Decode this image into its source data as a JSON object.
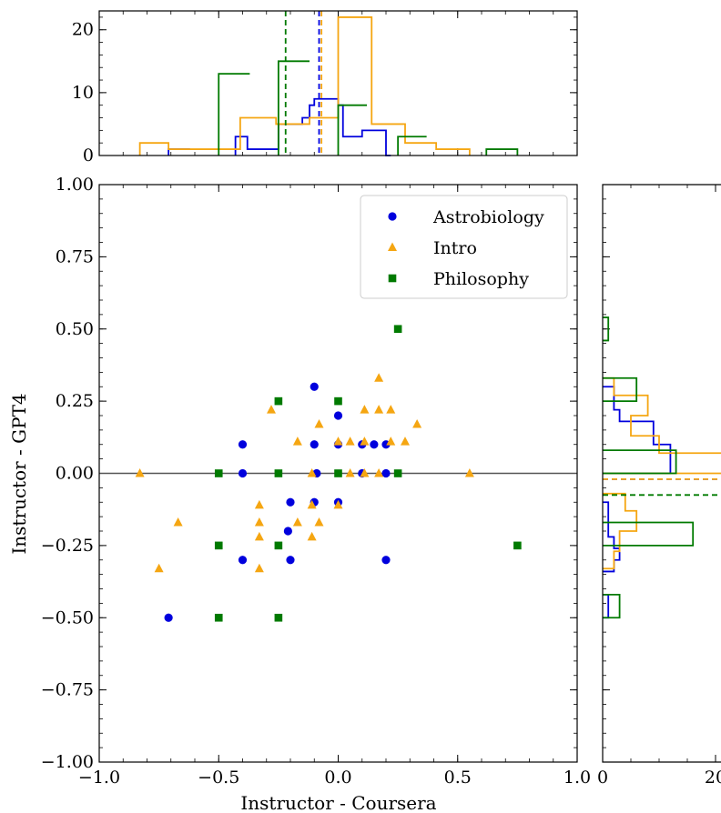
{
  "chart_data": [
    {
      "type": "scatter",
      "panel": "main",
      "xlabel": "Instructor - Coursera",
      "ylabel": "Instructor - GPT4",
      "xlim": [
        -1.0,
        1.0
      ],
      "ylim": [
        -1.0,
        1.0
      ],
      "xticks": [
        "−1.0",
        "−0.5",
        "0.0",
        "0.5",
        "1.0"
      ],
      "xtick_values": [
        -1.0,
        -0.5,
        0.0,
        0.5,
        1.0
      ],
      "yticks": [
        "1.00",
        "0.75",
        "0.50",
        "0.25",
        "0.00",
        "−0.25",
        "−0.50",
        "−0.75",
        "−1.00"
      ],
      "ytick_values": [
        1.0,
        0.75,
        0.5,
        0.25,
        0.0,
        -0.25,
        -0.5,
        -0.75,
        -1.0
      ],
      "hline": 0,
      "legend_position": "top-right",
      "series": [
        {
          "name": "Astrobiology",
          "marker": "circle",
          "color": "#0000dd",
          "points": [
            [
              -0.71,
              -0.5
            ],
            [
              -0.4,
              0.1
            ],
            [
              -0.4,
              0.0
            ],
            [
              -0.4,
              -0.3
            ],
            [
              -0.2,
              -0.1
            ],
            [
              -0.21,
              -0.2
            ],
            [
              -0.2,
              -0.3
            ],
            [
              -0.1,
              0.3
            ],
            [
              -0.1,
              0.1
            ],
            [
              -0.09,
              0.0
            ],
            [
              -0.1,
              -0.1
            ],
            [
              0.0,
              0.2
            ],
            [
              0.0,
              0.1
            ],
            [
              0.0,
              -0.1
            ],
            [
              0.1,
              0.1
            ],
            [
              0.1,
              0.0
            ],
            [
              0.15,
              0.1
            ],
            [
              0.2,
              0.1
            ],
            [
              0.2,
              0.0
            ],
            [
              0.2,
              -0.3
            ]
          ]
        },
        {
          "name": "Intro",
          "marker": "triangle",
          "color": "#f5a612",
          "points": [
            [
              -0.83,
              0.0
            ],
            [
              -0.75,
              -0.33
            ],
            [
              -0.67,
              -0.17
            ],
            [
              -0.28,
              0.22
            ],
            [
              -0.33,
              -0.11
            ],
            [
              -0.33,
              -0.17
            ],
            [
              -0.33,
              -0.22
            ],
            [
              -0.33,
              -0.33
            ],
            [
              -0.17,
              0.11
            ],
            [
              -0.17,
              -0.17
            ],
            [
              -0.11,
              0.0
            ],
            [
              -0.11,
              -0.11
            ],
            [
              -0.11,
              -0.22
            ],
            [
              -0.08,
              0.17
            ],
            [
              -0.08,
              -0.17
            ],
            [
              0.0,
              0.11
            ],
            [
              0.0,
              -0.11
            ],
            [
              0.05,
              0.11
            ],
            [
              0.05,
              0.0
            ],
            [
              0.11,
              0.22
            ],
            [
              0.11,
              0.11
            ],
            [
              0.11,
              0.0
            ],
            [
              0.17,
              0.33
            ],
            [
              0.17,
              0.22
            ],
            [
              0.17,
              0.0
            ],
            [
              0.22,
              0.22
            ],
            [
              0.22,
              0.11
            ],
            [
              0.28,
              0.11
            ],
            [
              0.33,
              0.17
            ],
            [
              0.55,
              0.0
            ]
          ]
        },
        {
          "name": "Philosophy",
          "marker": "square",
          "color": "#007a00",
          "points": [
            [
              -0.5,
              0.0
            ],
            [
              -0.5,
              -0.25
            ],
            [
              -0.5,
              -0.5
            ],
            [
              -0.25,
              0.25
            ],
            [
              -0.25,
              0.0
            ],
            [
              -0.25,
              -0.25
            ],
            [
              -0.25,
              -0.5
            ],
            [
              0.0,
              0.25
            ],
            [
              0.0,
              0.0
            ],
            [
              0.25,
              0.5
            ],
            [
              0.25,
              0.0
            ],
            [
              0.75,
              -0.25
            ]
          ]
        }
      ]
    },
    {
      "type": "histogram",
      "panel": "top",
      "orientation": "vertical",
      "xlim": [
        -1.0,
        1.0
      ],
      "ylim": [
        0,
        23
      ],
      "yticks": [
        "0",
        "10",
        "20"
      ],
      "ytick_values": [
        0,
        10,
        20
      ],
      "series": [
        {
          "name": "Astrobiology",
          "color": "#0000dd",
          "bins": [
            [
              -0.71,
              -0.62,
              1
            ],
            [
              -0.43,
              -0.38,
              3
            ],
            [
              -0.38,
              -0.34,
              1
            ],
            [
              -0.34,
              -0.29,
              1
            ],
            [
              -0.29,
              -0.25,
              1
            ],
            [
              -0.25,
              -0.15,
              5
            ],
            [
              -0.15,
              -0.12,
              6
            ],
            [
              -0.12,
              -0.1,
              8
            ],
            [
              -0.1,
              0.0,
              9
            ],
            [
              0.0,
              0.02,
              8
            ],
            [
              0.02,
              0.1,
              3
            ],
            [
              0.1,
              0.2,
              4
            ],
            [
              0.2,
              0.22,
              0
            ]
          ],
          "mean": -0.08
        },
        {
          "name": "Intro",
          "color": "#f5a612",
          "bins": [
            [
              -0.83,
              -0.71,
              2
            ],
            [
              -0.71,
              -0.5,
              1
            ],
            [
              -0.5,
              -0.41,
              1
            ],
            [
              -0.41,
              -0.26,
              6
            ],
            [
              -0.26,
              -0.12,
              5
            ],
            [
              -0.12,
              0.0,
              6
            ],
            [
              0.0,
              0.14,
              22
            ],
            [
              0.14,
              0.28,
              5
            ],
            [
              0.28,
              0.41,
              2
            ],
            [
              0.41,
              0.55,
              1
            ]
          ],
          "mean": -0.07
        },
        {
          "name": "Philosophy",
          "color": "#007a00",
          "bins": [
            [
              -0.5,
              -0.37,
              13
            ],
            [
              -0.25,
              -0.12,
              15
            ],
            [
              0.0,
              0.12,
              8
            ],
            [
              0.25,
              0.37,
              3
            ],
            [
              0.62,
              0.75,
              1
            ]
          ],
          "mean": -0.22
        }
      ]
    },
    {
      "type": "histogram",
      "panel": "right",
      "orientation": "horizontal",
      "ylim": [
        -1.0,
        1.0
      ],
      "xticks": [
        "0",
        "20"
      ],
      "xtick_values": [
        0,
        20
      ],
      "series": [
        {
          "name": "Astrobiology",
          "color": "#0000dd",
          "bins": [
            [
              -0.5,
              -0.42,
              1
            ],
            [
              -0.34,
              -0.3,
              2
            ],
            [
              -0.3,
              -0.26,
              3
            ],
            [
              -0.26,
              -0.22,
              2
            ],
            [
              -0.22,
              -0.1,
              1
            ],
            [
              0.0,
              0.1,
              12
            ],
            [
              0.1,
              0.18,
              9
            ],
            [
              0.18,
              0.22,
              3
            ],
            [
              0.22,
              0.3,
              2
            ]
          ],
          "mean": -0.02
        },
        {
          "name": "Intro",
          "color": "#f5a612",
          "bins": [
            [
              -0.33,
              -0.27,
              2
            ],
            [
              -0.27,
              -0.2,
              3
            ],
            [
              -0.2,
              -0.13,
              6
            ],
            [
              -0.13,
              -0.07,
              4
            ],
            [
              0.0,
              0.07,
              26
            ],
            [
              0.07,
              0.13,
              10
            ],
            [
              0.13,
              0.2,
              5
            ],
            [
              0.2,
              0.27,
              8
            ],
            [
              0.27,
              0.33,
              2
            ]
          ],
          "mean": -0.02
        },
        {
          "name": "Philosophy",
          "color": "#007a00",
          "bins": [
            [
              -0.5,
              -0.42,
              3
            ],
            [
              -0.25,
              -0.17,
              16
            ],
            [
              0.0,
              0.08,
              13
            ],
            [
              0.25,
              0.33,
              6
            ],
            [
              0.46,
              0.54,
              1
            ]
          ],
          "mean": -0.075
        }
      ]
    }
  ]
}
